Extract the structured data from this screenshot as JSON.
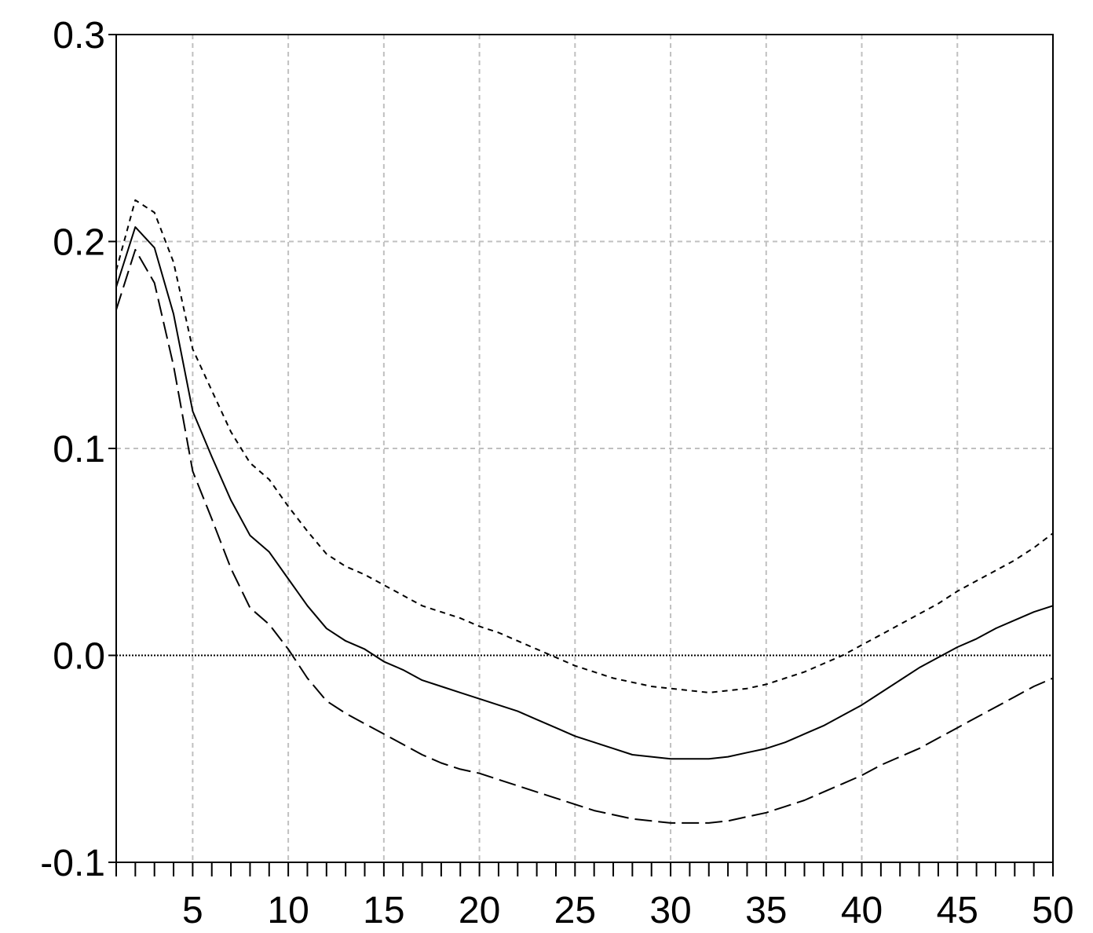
{
  "chart_data": {
    "type": "line",
    "title": "",
    "xlabel": "",
    "ylabel": "",
    "xlim": [
      1,
      50
    ],
    "ylim": [
      -0.1,
      0.3
    ],
    "x_ticks": [
      5,
      10,
      15,
      20,
      25,
      30,
      35,
      40,
      45,
      50
    ],
    "x_tick_labels": [
      "5",
      "10",
      "15",
      "20",
      "25",
      "30",
      "35",
      "40",
      "45",
      "50"
    ],
    "y_ticks": [
      -0.1,
      0.0,
      0.1,
      0.2,
      0.3
    ],
    "y_tick_labels": [
      "-0.1",
      "0.0",
      "0.1",
      "0.2",
      "0.3"
    ],
    "grid": true,
    "zero_line": true,
    "x": [
      1,
      2,
      3,
      4,
      5,
      6,
      7,
      8,
      9,
      10,
      11,
      12,
      13,
      14,
      15,
      16,
      17,
      18,
      19,
      20,
      21,
      22,
      23,
      24,
      25,
      26,
      27,
      28,
      29,
      30,
      31,
      32,
      33,
      34,
      35,
      36,
      37,
      38,
      39,
      40,
      41,
      42,
      43,
      44,
      45,
      46,
      47,
      48,
      49,
      50
    ],
    "series": [
      {
        "style": "solid",
        "color": "#000000",
        "values": [
          0.178,
          0.207,
          0.197,
          0.165,
          0.118,
          0.096,
          0.075,
          0.058,
          0.05,
          0.037,
          0.024,
          0.013,
          0.007,
          0.003,
          -0.003,
          -0.007,
          -0.012,
          -0.015,
          -0.018,
          -0.021,
          -0.024,
          -0.027,
          -0.031,
          -0.035,
          -0.039,
          -0.042,
          -0.045,
          -0.048,
          -0.049,
          -0.05,
          -0.05,
          -0.05,
          -0.049,
          -0.047,
          -0.045,
          -0.042,
          -0.038,
          -0.034,
          -0.029,
          -0.024,
          -0.018,
          -0.012,
          -0.006,
          -0.001,
          0.004,
          0.008,
          0.013,
          0.017,
          0.021,
          0.024
        ]
      },
      {
        "style": "short-dash",
        "color": "#000000",
        "values": [
          0.186,
          0.22,
          0.214,
          0.19,
          0.148,
          0.128,
          0.108,
          0.093,
          0.085,
          0.072,
          0.06,
          0.049,
          0.043,
          0.039,
          0.034,
          0.029,
          0.024,
          0.021,
          0.018,
          0.014,
          0.011,
          0.007,
          0.003,
          -0.001,
          -0.005,
          -0.008,
          -0.011,
          -0.013,
          -0.015,
          -0.016,
          -0.017,
          -0.018,
          -0.017,
          -0.016,
          -0.014,
          -0.011,
          -0.008,
          -0.004,
          0.0,
          0.005,
          0.01,
          0.015,
          0.02,
          0.025,
          0.031,
          0.036,
          0.041,
          0.046,
          0.052,
          0.059
        ]
      },
      {
        "style": "long-dash",
        "color": "#000000",
        "values": [
          0.167,
          0.196,
          0.18,
          0.14,
          0.089,
          0.066,
          0.042,
          0.023,
          0.015,
          0.003,
          -0.011,
          -0.022,
          -0.028,
          -0.033,
          -0.038,
          -0.043,
          -0.048,
          -0.052,
          -0.055,
          -0.057,
          -0.06,
          -0.063,
          -0.066,
          -0.069,
          -0.072,
          -0.075,
          -0.077,
          -0.079,
          -0.08,
          -0.081,
          -0.081,
          -0.081,
          -0.08,
          -0.078,
          -0.076,
          -0.073,
          -0.07,
          -0.066,
          -0.062,
          -0.058,
          -0.053,
          -0.049,
          -0.045,
          -0.04,
          -0.035,
          -0.03,
          -0.025,
          -0.02,
          -0.015,
          -0.011
        ]
      }
    ]
  }
}
